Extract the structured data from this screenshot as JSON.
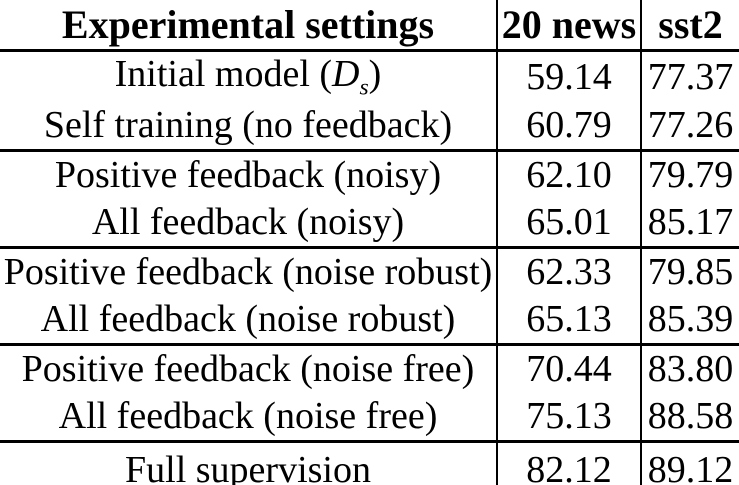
{
  "table": {
    "columns": [
      "Experimental settings",
      "20 news",
      "sst2"
    ],
    "sections": [
      [
        {
          "label": "Initial model (D_s)",
          "parts": [
            {
              "t": "Initial model ("
            },
            {
              "t": "D",
              "style": "math"
            },
            {
              "t": "s",
              "style": "sub"
            },
            {
              "t": ")"
            }
          ],
          "values": [
            "59.14",
            "77.37"
          ]
        },
        {
          "label": "Self training (no feedback)",
          "values": [
            "60.79",
            "77.26"
          ]
        }
      ],
      [
        {
          "label": "Positive feedback (noisy)",
          "values": [
            "62.10",
            "79.79"
          ]
        },
        {
          "label": "All feedback (noisy)",
          "values": [
            "65.01",
            "85.17"
          ]
        }
      ],
      [
        {
          "label": "Positive feedback (noise robust)",
          "values": [
            "62.33",
            "79.85"
          ]
        },
        {
          "label": "All feedback (noise robust)",
          "values": [
            "65.13",
            "85.39"
          ]
        }
      ],
      [
        {
          "label": "Positive feedback (noise free)",
          "values": [
            "70.44",
            "83.80"
          ]
        },
        {
          "label": "All feedback (noise free)",
          "values": [
            "75.13",
            "88.58"
          ]
        }
      ],
      [
        {
          "label": "Full supervision",
          "values": [
            "82.12",
            "89.12"
          ]
        }
      ]
    ]
  },
  "colors": {
    "text": "#000000",
    "rules": "#000000",
    "background": "#ffffff"
  }
}
